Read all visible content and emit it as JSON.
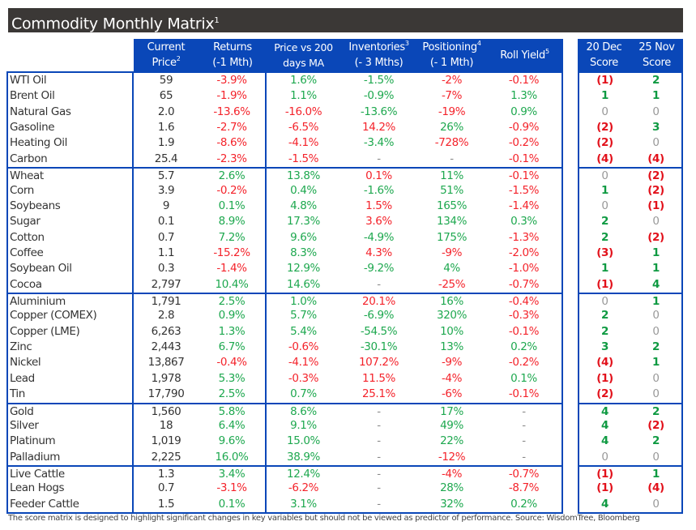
{
  "title": "Commodity Monthly Matrix",
  "title_sup": "1",
  "headers": {
    "price": [
      "Current",
      "Price",
      "2"
    ],
    "returns": [
      "Returns",
      "(-1 Mth)"
    ],
    "pvma": [
      "Price vs 200",
      "days MA"
    ],
    "inventories": [
      "Inventories",
      "3",
      "(- 3 Mths)"
    ],
    "positioning": [
      "Positioning",
      "4",
      "(- 1 Mth)"
    ],
    "roll": [
      "Roll Yield",
      "5"
    ],
    "score_dec": [
      "20 Dec",
      "Score"
    ],
    "score_nov": [
      "25 Nov",
      "Score"
    ]
  },
  "colors": {
    "header_blue": "#0a47b8",
    "title_bg": "#3b3836",
    "positive": "#1ea84f",
    "negative": "#f4232b"
  },
  "inventories_inverted": true,
  "groups": [
    [
      [
        "WTI Oil",
        "59",
        "-3.9%",
        "1.6%",
        "-1.5%",
        "-2%",
        "-0.1%",
        "(1)",
        "2"
      ],
      [
        "Brent Oil",
        "65",
        "-1.9%",
        "1.1%",
        "-0.9%",
        "-7%",
        "1.3%",
        "1",
        "1"
      ],
      [
        "Natural Gas",
        "2.0",
        "-13.6%",
        "-16.0%",
        "-13.6%",
        "-19%",
        "0.9%",
        "0",
        "0"
      ],
      [
        "Gasoline",
        "1.6",
        "-2.7%",
        "-6.5%",
        "14.2%",
        "26%",
        "-0.9%",
        "(2)",
        "3"
      ],
      [
        "Heating Oil",
        "1.9",
        "-8.6%",
        "-4.1%",
        "-3.4%",
        "-728%",
        "-0.2%",
        "(2)",
        "0"
      ],
      [
        "Carbon",
        "25.4",
        "-2.3%",
        "-1.5%",
        "-",
        "-",
        "-0.1%",
        "(4)",
        "(4)"
      ]
    ],
    [
      [
        "Wheat",
        "5.7",
        "2.6%",
        "13.8%",
        "0.1%",
        "11%",
        "-0.1%",
        "0",
        "(2)"
      ],
      [
        "Corn",
        "3.9",
        "-0.2%",
        "0.4%",
        "-1.6%",
        "51%",
        "-1.5%",
        "1",
        "(2)"
      ],
      [
        "Soybeans",
        "9",
        "0.1%",
        "4.8%",
        "1.5%",
        "165%",
        "-1.4%",
        "0",
        "(1)"
      ],
      [
        "Sugar",
        "0.1",
        "8.9%",
        "17.3%",
        "3.6%",
        "134%",
        "0.3%",
        "2",
        "0"
      ],
      [
        "Cotton",
        "0.7",
        "7.2%",
        "9.6%",
        "-4.9%",
        "175%",
        "-1.3%",
        "2",
        "(2)"
      ],
      [
        "Coffee",
        "1.1",
        "-15.2%",
        "8.3%",
        "4.3%",
        "-9%",
        "-2.0%",
        "(3)",
        "1"
      ],
      [
        "Soybean Oil",
        "0.3",
        "-1.4%",
        "12.9%",
        "-9.2%",
        "4%",
        "-1.0%",
        "1",
        "1"
      ],
      [
        "Cocoa",
        "2,797",
        "10.4%",
        "14.6%",
        "-",
        "-25%",
        "-0.7%",
        "(1)",
        "4"
      ]
    ],
    [
      [
        "Aluminium",
        "1,791",
        "2.5%",
        "1.0%",
        "20.1%",
        "16%",
        "-0.4%",
        "0",
        "1"
      ],
      [
        "Copper (COMEX)",
        "2.8",
        "0.9%",
        "5.7%",
        "-6.9%",
        "320%",
        "-0.3%",
        "2",
        "0"
      ],
      [
        "Copper (LME)",
        "6,263",
        "1.3%",
        "5.4%",
        "-54.5%",
        "10%",
        "-0.1%",
        "2",
        "0"
      ],
      [
        "Zinc",
        "2,443",
        "6.7%",
        "-0.6%",
        "-30.1%",
        "13%",
        "0.2%",
        "3",
        "2"
      ],
      [
        "Nickel",
        "13,867",
        "-0.4%",
        "-4.1%",
        "107.2%",
        "-9%",
        "-0.2%",
        "(4)",
        "1"
      ],
      [
        "Lead",
        "1,978",
        "5.3%",
        "-0.3%",
        "11.5%",
        "-4%",
        "0.1%",
        "(1)",
        "0"
      ],
      [
        "Tin",
        "17,790",
        "2.5%",
        "0.7%",
        "25.1%",
        "-6%",
        "-0.1%",
        "(2)",
        "0"
      ]
    ],
    [
      [
        "Gold",
        "1,560",
        "5.8%",
        "8.6%",
        "-",
        "17%",
        "-",
        "4",
        "2"
      ],
      [
        "Silver",
        "18",
        "6.4%",
        "9.1%",
        "-",
        "49%",
        "-",
        "4",
        "(2)"
      ],
      [
        "Platinum",
        "1,019",
        "9.6%",
        "15.0%",
        "-",
        "22%",
        "-",
        "4",
        "2"
      ],
      [
        "Palladium",
        "2,225",
        "16.0%",
        "38.9%",
        "-",
        "-12%",
        "-",
        "0",
        "0"
      ]
    ],
    [
      [
        "Live Cattle",
        "1.3",
        "3.4%",
        "12.4%",
        "-",
        "-4%",
        "-0.7%",
        "(1)",
        "1"
      ],
      [
        "Lean Hogs",
        "0.7",
        "-3.1%",
        "-6.2%",
        "-",
        "28%",
        "-8.7%",
        "(1)",
        "(4)"
      ],
      [
        "Feeder Cattle",
        "1.5",
        "0.1%",
        "3.1%",
        "-",
        "32%",
        "0.2%",
        "4",
        "0"
      ]
    ]
  ],
  "footnote": "The score matrix is designed to highlight significant changes in key variables but should not be viewed as predictor of performance. Source: WisdomTree, Bloomberg"
}
